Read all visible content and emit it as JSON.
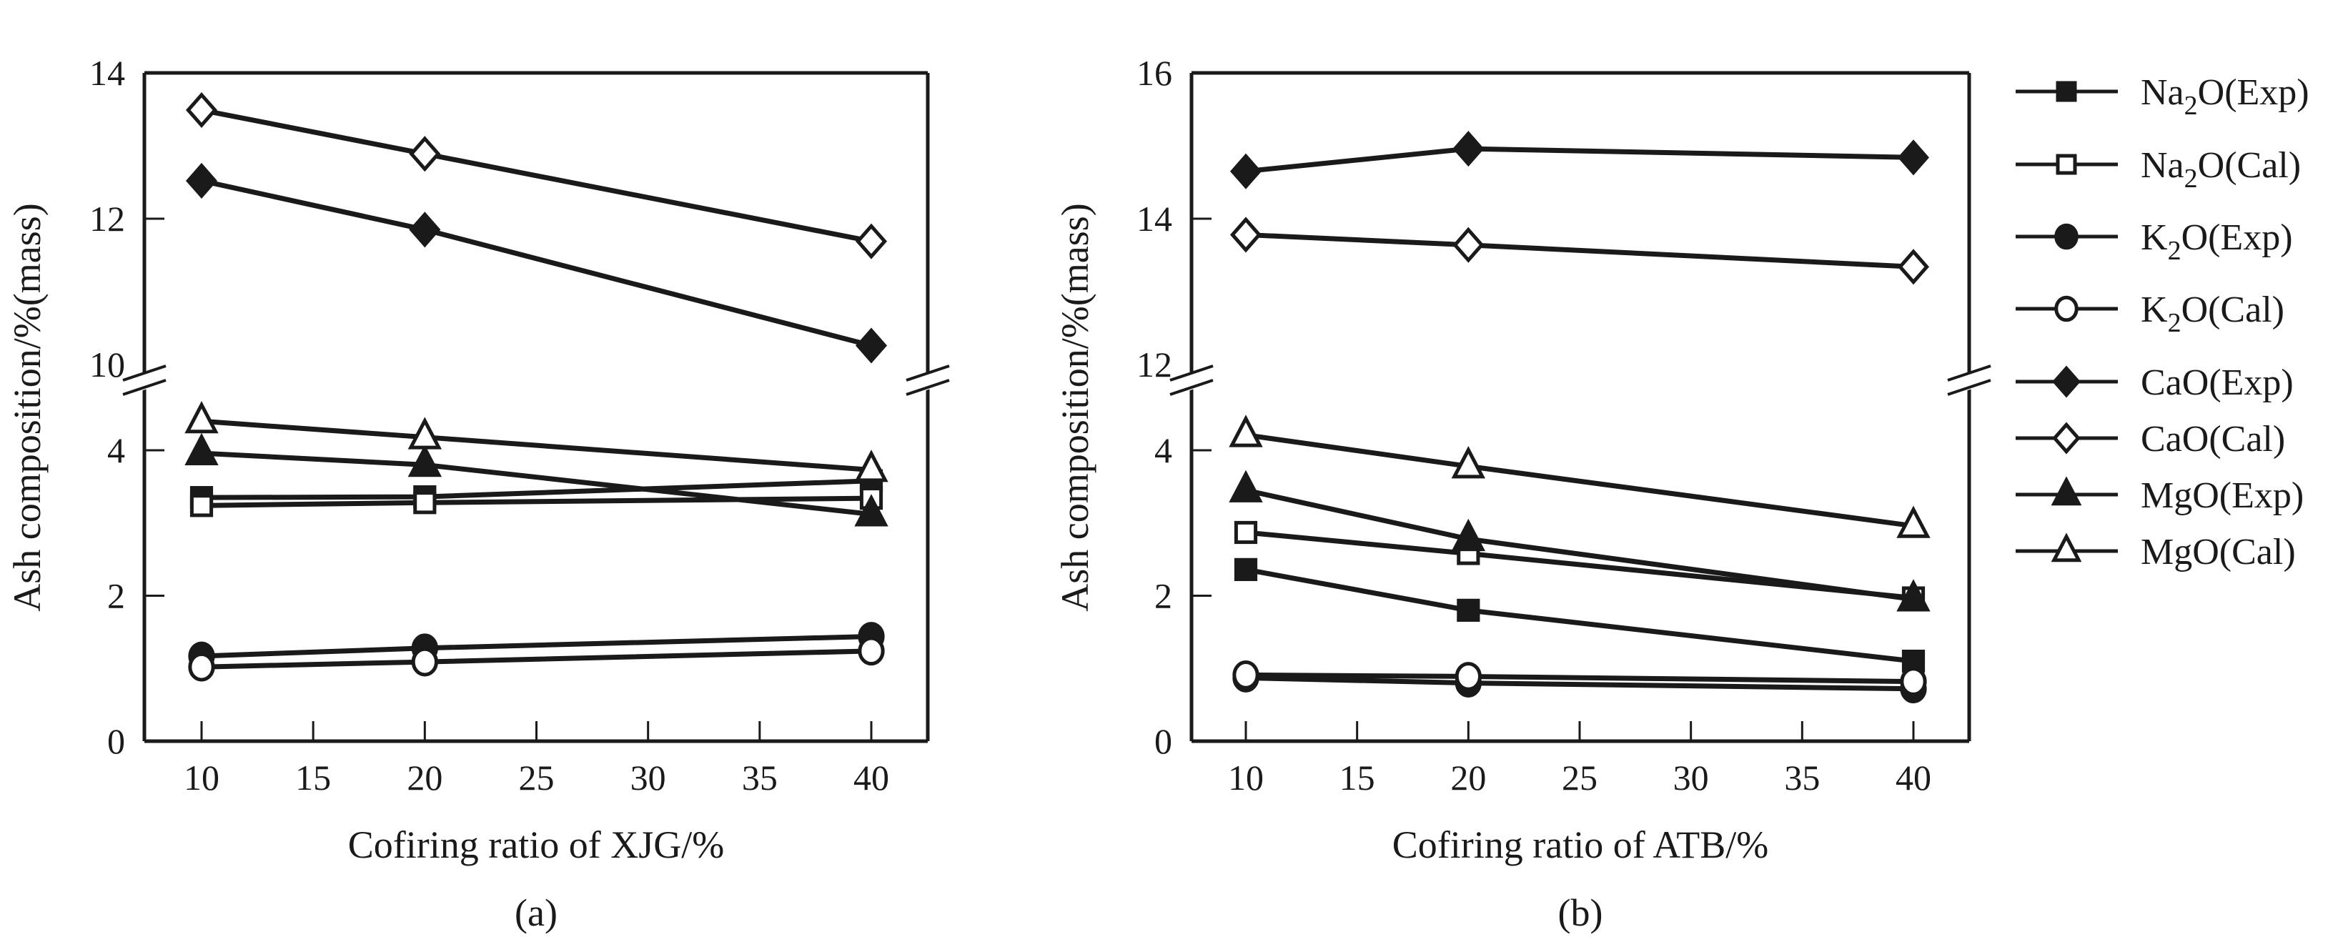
{
  "figure": {
    "background": "#ffffff",
    "ink_color": "#1a1a1a"
  },
  "chart_data": [
    {
      "id": "a",
      "type": "line",
      "panel_label": "(a)",
      "title": "",
      "xlabel": "Cofiring ratio of XJG/%",
      "ylabel": "Ash composition/%(mass)",
      "x": [
        10,
        20,
        40
      ],
      "xlim": [
        7.5,
        42.5
      ],
      "x_ticks": [
        10,
        15,
        20,
        25,
        30,
        35,
        40
      ],
      "y_axis_broken": true,
      "ylim_lower": [
        0,
        5
      ],
      "ylim_upper": [
        10,
        14
      ],
      "y_ticks_lower": [
        0,
        2,
        4
      ],
      "y_ticks_upper": [
        10,
        12,
        14
      ],
      "grid": false,
      "series": [
        {
          "name": "Na2O(Exp)",
          "marker": "square",
          "filled": true,
          "values": [
            3.35,
            3.36,
            3.58
          ]
        },
        {
          "name": "Na2O(Cal)",
          "marker": "square",
          "filled": false,
          "values": [
            3.24,
            3.28,
            3.34
          ]
        },
        {
          "name": "K2O(Exp)",
          "marker": "circle",
          "filled": true,
          "values": [
            1.17,
            1.28,
            1.44
          ]
        },
        {
          "name": "K2O(Cal)",
          "marker": "circle",
          "filled": false,
          "values": [
            1.02,
            1.09,
            1.24
          ]
        },
        {
          "name": "CaO(Exp)",
          "marker": "diamond",
          "filled": true,
          "values": [
            12.52,
            11.85,
            10.26
          ]
        },
        {
          "name": "CaO(Cal)",
          "marker": "diamond",
          "filled": false,
          "values": [
            13.49,
            12.89,
            11.69
          ]
        },
        {
          "name": "MgO(Exp)",
          "marker": "triangle",
          "filled": true,
          "values": [
            3.96,
            3.8,
            3.12
          ]
        },
        {
          "name": "MgO(Cal)",
          "marker": "triangle",
          "filled": false,
          "values": [
            4.4,
            4.18,
            3.73
          ]
        }
      ]
    },
    {
      "id": "b",
      "type": "line",
      "panel_label": "(b)",
      "title": "",
      "xlabel": "Cofiring ratio of ATB/%",
      "ylabel": "Ash composition/%(mass)",
      "x": [
        10,
        20,
        40
      ],
      "xlim": [
        7.5,
        42.5
      ],
      "x_ticks": [
        10,
        15,
        20,
        25,
        30,
        35,
        40
      ],
      "y_axis_broken": true,
      "ylim_lower": [
        0,
        5
      ],
      "ylim_upper": [
        12,
        16
      ],
      "y_ticks_lower": [
        0,
        2,
        4
      ],
      "y_ticks_upper": [
        12,
        14,
        16
      ],
      "grid": false,
      "series": [
        {
          "name": "Na2O(Exp)",
          "marker": "square",
          "filled": true,
          "values": [
            2.36,
            1.8,
            1.1
          ]
        },
        {
          "name": "Na2O(Cal)",
          "marker": "square",
          "filled": false,
          "values": [
            2.87,
            2.58,
            1.97
          ]
        },
        {
          "name": "K2O(Exp)",
          "marker": "circle",
          "filled": true,
          "values": [
            0.87,
            0.8,
            0.72
          ]
        },
        {
          "name": "K2O(Cal)",
          "marker": "circle",
          "filled": false,
          "values": [
            0.91,
            0.89,
            0.82
          ]
        },
        {
          "name": "CaO(Exp)",
          "marker": "diamond",
          "filled": true,
          "values": [
            14.65,
            14.96,
            14.84
          ]
        },
        {
          "name": "CaO(Cal)",
          "marker": "diamond",
          "filled": false,
          "values": [
            13.78,
            13.64,
            13.34
          ]
        },
        {
          "name": "MgO(Exp)",
          "marker": "triangle",
          "filled": true,
          "values": [
            3.45,
            2.78,
            1.95
          ]
        },
        {
          "name": "MgO(Cal)",
          "marker": "triangle",
          "filled": false,
          "values": [
            4.21,
            3.78,
            2.96
          ]
        }
      ]
    }
  ],
  "legend": {
    "placement": "right",
    "entries": [
      {
        "base": "Na",
        "sub": "2",
        "rest": "O(Exp)",
        "marker": "square",
        "filled": true
      },
      {
        "base": "Na",
        "sub": "2",
        "rest": "O(Cal)",
        "marker": "square",
        "filled": false
      },
      {
        "base": "K",
        "sub": "2",
        "rest": "O(Exp)",
        "marker": "circle",
        "filled": true
      },
      {
        "base": "K",
        "sub": "2",
        "rest": "O(Cal)",
        "marker": "circle",
        "filled": false
      },
      {
        "base": "CaO(Exp)",
        "sub": "",
        "rest": "",
        "marker": "diamond",
        "filled": true
      },
      {
        "base": "CaO(Cal)",
        "sub": "",
        "rest": "",
        "marker": "diamond",
        "filled": false
      },
      {
        "base": "MgO(Exp)",
        "sub": "",
        "rest": "",
        "marker": "triangle",
        "filled": true
      },
      {
        "base": "MgO(Cal)",
        "sub": "",
        "rest": "",
        "marker": "triangle",
        "filled": false
      }
    ]
  }
}
